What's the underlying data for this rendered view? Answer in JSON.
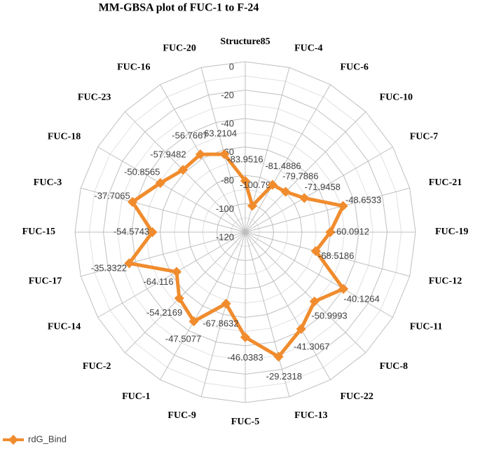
{
  "chart_data": {
    "type": "radar",
    "title": "MM-GBSA plot of FUC-1 to F-24",
    "categories": [
      "Structure85",
      "FUC-4",
      "FUC-6",
      "FUC-10",
      "FUC-7",
      "FUC-21",
      "FUC-19",
      "FUC-12",
      "FUC-11",
      "FUC-8",
      "FUC-22",
      "FUC-13",
      "FUC-5",
      "FUC-9",
      "FUC-1",
      "FUC-2",
      "FUC-14",
      "FUC-17",
      "FUC-15",
      "FUC-3",
      "FUC-18",
      "FUC-23",
      "FUC-16",
      "FUC-20"
    ],
    "series": [
      {
        "name": "rdG_Bind",
        "color": "#f08c2e",
        "values": [
          -83.9516,
          -100.798,
          -81.4886,
          -79.7886,
          -71.9458,
          -48.6533,
          -60.0912,
          -68.5186,
          -40.1264,
          -50.9993,
          -41.3067,
          -29.2318,
          -46.0383,
          -67.8632,
          -47.5077,
          -54.2169,
          -64.116,
          -35.3322,
          -54.5743,
          -37.7065,
          -50.8565,
          -57.9482,
          -56.7667,
          -63.2104
        ]
      }
    ],
    "ylim": [
      -120,
      0
    ],
    "yticks": [
      0,
      -20,
      -40,
      -60,
      -80,
      -100,
      -120
    ],
    "grid": true,
    "legend": "bottom-left"
  }
}
